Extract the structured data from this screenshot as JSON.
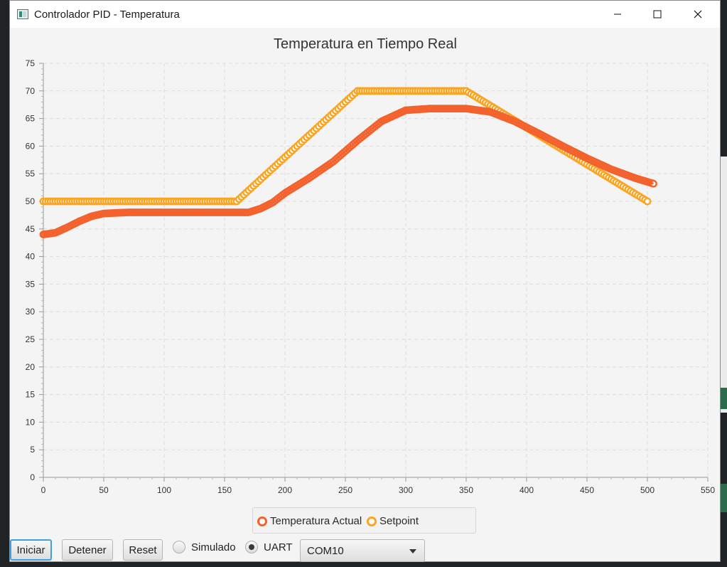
{
  "window": {
    "title": "Controlador PID - Temperatura"
  },
  "chart_data": {
    "type": "line",
    "title": "Temperatura en Tiempo Real",
    "xlabel": "",
    "ylabel": "",
    "xlim": [
      0,
      550
    ],
    "ylim": [
      0,
      75
    ],
    "xticks": [
      0,
      50,
      100,
      150,
      200,
      250,
      300,
      350,
      400,
      450,
      500,
      550
    ],
    "yticks": [
      0,
      5,
      10,
      15,
      20,
      25,
      30,
      35,
      40,
      45,
      50,
      55,
      60,
      65,
      70,
      75
    ],
    "grid": true,
    "legend": "bottom-center",
    "series": [
      {
        "name": "Temperatura Actual",
        "color": "#f3622d",
        "points": [
          [
            0,
            44
          ],
          [
            10,
            44.3
          ],
          [
            20,
            45.3
          ],
          [
            30,
            46.4
          ],
          [
            40,
            47.3
          ],
          [
            50,
            47.8
          ],
          [
            70,
            48
          ],
          [
            100,
            48
          ],
          [
            150,
            48
          ],
          [
            170,
            48
          ],
          [
            180,
            48.7
          ],
          [
            190,
            49.8
          ],
          [
            200,
            51.5
          ],
          [
            220,
            54.2
          ],
          [
            240,
            57.2
          ],
          [
            260,
            61
          ],
          [
            280,
            64.5
          ],
          [
            300,
            66.5
          ],
          [
            320,
            66.8
          ],
          [
            350,
            66.8
          ],
          [
            370,
            66.2
          ],
          [
            390,
            64.5
          ],
          [
            410,
            62.3
          ],
          [
            430,
            60
          ],
          [
            450,
            57.8
          ],
          [
            470,
            55.8
          ],
          [
            490,
            54.2
          ],
          [
            505,
            53.2
          ]
        ]
      },
      {
        "name": "Setpoint",
        "color": "#f9a522",
        "points": [
          [
            0,
            50
          ],
          [
            160,
            50
          ],
          [
            260,
            70
          ],
          [
            350,
            70
          ],
          [
            500,
            50
          ]
        ]
      }
    ]
  },
  "controls": {
    "start_label": "Iniciar",
    "stop_label": "Detener",
    "reset_label": "Reset",
    "mode_simulated_label": "Simulado",
    "mode_uart_label": "UART",
    "mode_selected": "UART",
    "port_selected": "COM10"
  }
}
